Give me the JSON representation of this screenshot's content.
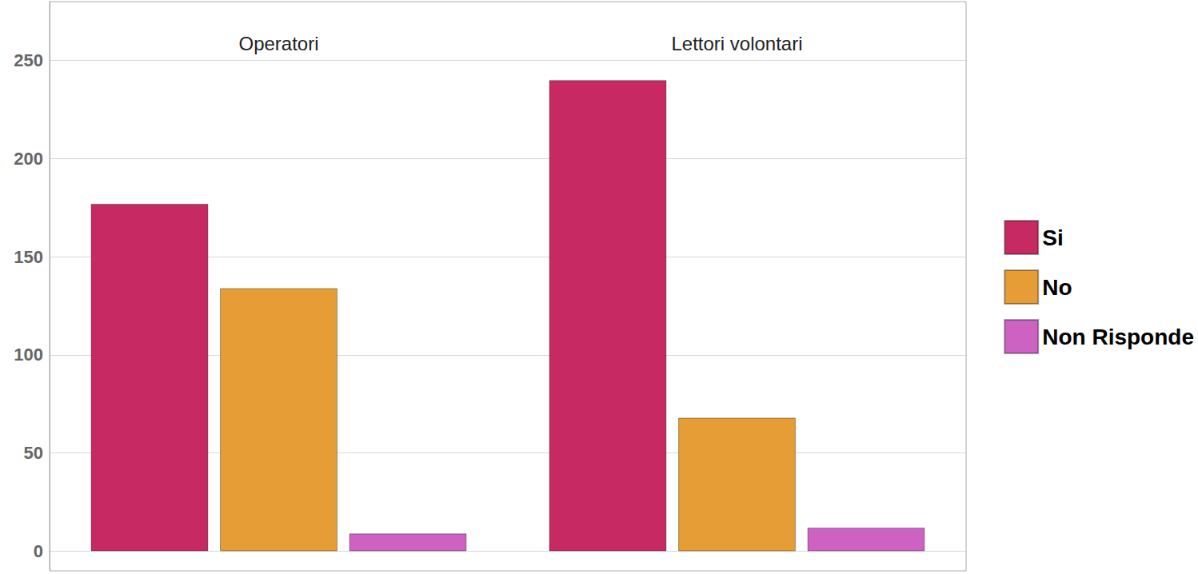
{
  "chart_data": {
    "type": "bar",
    "categories": [
      "Operatori",
      "Lettori volontari"
    ],
    "series": [
      {
        "name": "Si",
        "color": "#c72a62",
        "values": [
          177,
          240
        ]
      },
      {
        "name": "No",
        "color": "#e69d35",
        "values": [
          134,
          68
        ]
      },
      {
        "name": "Non Risponde",
        "color": "#cd62c3",
        "values": [
          9,
          12
        ]
      }
    ],
    "ylim": [
      -10,
      280
    ],
    "yticks": [
      0,
      50,
      100,
      150,
      200,
      250
    ],
    "grid": true,
    "legend": "right"
  }
}
